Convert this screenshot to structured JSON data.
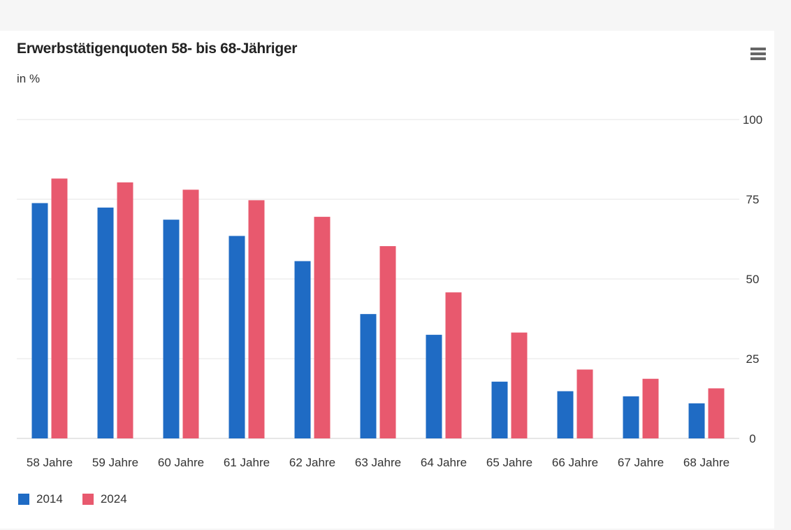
{
  "chart_data": {
    "type": "bar",
    "title": "Erwerbstätigenquoten 58- bis 68-Jähriger",
    "subtitle": "in %",
    "categories": [
      "58 Jahre",
      "59 Jahre",
      "60 Jahre",
      "61 Jahre",
      "62 Jahre",
      "63 Jahre",
      "64 Jahre",
      "65 Jahre",
      "66 Jahre",
      "67 Jahre",
      "68 Jahre"
    ],
    "series": [
      {
        "name": "2014",
        "color": "#1f6bc4",
        "values": [
          73.8,
          72.4,
          68.6,
          63.5,
          55.6,
          39.0,
          32.5,
          17.8,
          14.8,
          13.2,
          11.0
        ]
      },
      {
        "name": "2024",
        "color": "#e8596e",
        "values": [
          81.5,
          80.3,
          78.0,
          74.7,
          69.5,
          60.3,
          45.8,
          33.2,
          21.6,
          18.7,
          15.7
        ]
      }
    ],
    "ylim": [
      0,
      100
    ],
    "yticks": [
      0,
      25,
      50,
      75,
      100
    ],
    "grid": true,
    "yaxis_side": "right",
    "legend_position": "bottom-left"
  },
  "menu_icon": "hamburger-menu-icon"
}
